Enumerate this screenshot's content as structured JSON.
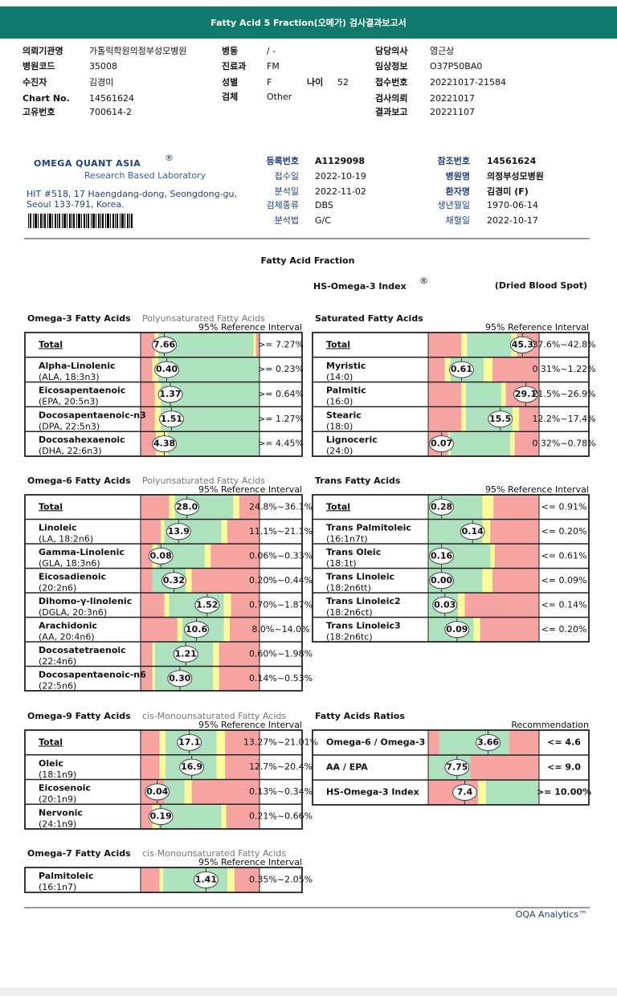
{
  "header": {
    "title": "Fatty Acid 5 Fraction(오메가) 검사결과보고서"
  },
  "info": {
    "left": [
      {
        "label": "의뢰기관명",
        "value": "가톨릭학원의정부성모병원"
      },
      {
        "label": "병원코드",
        "value": "35008"
      },
      {
        "label": "수진자",
        "value": "김경미"
      },
      {
        "label": "Chart No.",
        "value": "14561624"
      },
      {
        "label": "고유번호",
        "value": "700614-2"
      }
    ],
    "middle": [
      {
        "label": "병동",
        "value": "/ -"
      },
      {
        "label": "진료과",
        "value": "FM"
      },
      {
        "label": "성별",
        "value": "F"
      },
      {
        "label": "검체",
        "value": "Other"
      }
    ],
    "age": {
      "label": "나이",
      "value": "52"
    },
    "right": [
      {
        "label": "담당의사",
        "value": "염근상"
      },
      {
        "label": "임상정보",
        "value": "O37P50BA0"
      },
      {
        "label": "접수번호",
        "value": "20221017-21584"
      },
      {
        "label": "검사의뢰",
        "value": "20221017"
      },
      {
        "label": "결과보고",
        "value": "20221107"
      }
    ]
  },
  "lab": {
    "logo": "OMEGA QUANT ASIA",
    "logo_mark": "®",
    "tagline": "Research Based Laboratory",
    "address": [
      "HIT #518, 17 Haengdang-dong, Seongdong-gu,",
      "Seoul 133-791, Korea."
    ],
    "fields_a": [
      {
        "label": "등록번호",
        "value": "A1129098"
      },
      {
        "label": "접수일",
        "value": "2022-10-19"
      },
      {
        "label": "분석일",
        "value": "2022-11-02"
      },
      {
        "label": "검체종류",
        "value": "DBS"
      },
      {
        "label": "분석법",
        "value": "G/C"
      }
    ],
    "fields_b": [
      {
        "label": "참조번호",
        "value": "14561624"
      },
      {
        "label": "병원명",
        "value": "의정부성모병원"
      },
      {
        "label": "환자명",
        "value": "김경미 (F)"
      },
      {
        "label": "생년월일",
        "value": "1970-06-14"
      },
      {
        "label": "채혈일",
        "value": "2022-10-17"
      }
    ]
  },
  "report": {
    "title": "Fatty Acid Fraction",
    "index_title": "HS-Omega-3 Index",
    "index_mark": "®",
    "specimen": "(Dried Blood Spot)"
  },
  "panels": [
    {
      "title": "Omega-3 Fatty Acids",
      "subtitle": "Polyunsaturated Fatty Acids",
      "ref_header": "95% Reference Interval",
      "rows": [
        {
          "name": "Total",
          "value": "7.66",
          "reference": ">= 7.27%"
        },
        {
          "name": "Alpha-Linolenic",
          "abbrev": "(ALA, 18:3n3)",
          "value": "0.40",
          "reference": ">= 0.23%"
        },
        {
          "name": "Eicosapentaenoic",
          "abbrev": "(EPA, 20:5n3)",
          "value": "1.37",
          "reference": ">= 0.64%"
        },
        {
          "name": "Docosapentaenoic-n3",
          "abbrev": "(DPA, 22:5n3)",
          "value": "1.51",
          "reference": ">= 1.27%"
        },
        {
          "name": "Docosahexaenoic",
          "abbrev": "(DHA, 22:6n3)",
          "value": "4.38",
          "reference": ">= 4.45%"
        }
      ]
    },
    {
      "title": "Saturated Fatty Acids",
      "ref_header": "95% Reference Interval",
      "rows": [
        {
          "name": "Total",
          "value": "45.3",
          "reference": "37.6%~42.8%"
        },
        {
          "name": "Myristic",
          "abbrev": "(14:0)",
          "value": "0.61",
          "reference": "0.31%~1.22%"
        },
        {
          "name": "Palmitic",
          "abbrev": "(16:0)",
          "value": "29.1",
          "reference": "21.5%~26.9%"
        },
        {
          "name": "Stearic",
          "abbrev": "(18:0)",
          "value": "15.5",
          "reference": "12.2%~17.4%"
        },
        {
          "name": "Lignoceric",
          "abbrev": "(24:0)",
          "value": "0.07",
          "reference": "0.32%~0.78%"
        }
      ]
    },
    {
      "title": "Omega-6 Fatty Acids",
      "subtitle": "Polyunsaturated Fatty Acids",
      "ref_header": "95% Reference Interval",
      "rows": [
        {
          "name": "Total",
          "value": "28.0",
          "reference": "24.8%~36.1%"
        },
        {
          "name": "Linoleic",
          "abbrev": "(LA, 18:2n6)",
          "value": "13.9",
          "reference": "11.1%~21.1%"
        },
        {
          "name": "Gamma-Linolenic",
          "abbrev": "(GLA, 18:3n6)",
          "value": "0.08",
          "reference": "0.06%~0.33%"
        },
        {
          "name": "Eicosadienoic",
          "abbrev": "(20:2n6)",
          "value": "0.32",
          "reference": "0.20%~0.44%"
        },
        {
          "name": "Dihomo-γ-linolenic",
          "abbrev": "(DGLA, 20:3n6)",
          "value": "1.52",
          "reference": "0.70%~1.87%"
        },
        {
          "name": "Arachidonic",
          "abbrev": "(AA, 20:4n6)",
          "value": "10.6",
          "reference": "8.0%~14.0%"
        },
        {
          "name": "Docosatetraenoic",
          "abbrev": "(22:4n6)",
          "value": "1.21",
          "reference": "0.60%~1.98%"
        },
        {
          "name": "Docosapentaenoic-n6",
          "abbrev": "(22:5n6)",
          "value": "0.30",
          "reference": "0.14%~0.53%"
        }
      ]
    },
    {
      "title": "Trans Fatty Acids",
      "ref_header": "95% Reference Interval",
      "rows": [
        {
          "name": "Total",
          "value": "0.28",
          "reference": "<= 0.91%"
        },
        {
          "name": "Trans Palmitoleic",
          "abbrev": "(16:1n7t)",
          "value": "0.14",
          "reference": "<= 0.20%"
        },
        {
          "name": "Trans Oleic",
          "abbrev": "(18:1t)",
          "value": "0.16",
          "reference": "<= 0.61%"
        },
        {
          "name": "Trans Linoleic",
          "abbrev": "(18:2n6tt)",
          "value": "0.00",
          "reference": "<= 0.09%"
        },
        {
          "name": "Trans Linoleic2",
          "abbrev": "(18:2n6ct)",
          "value": "0.03",
          "reference": "<= 0.14%"
        },
        {
          "name": "Trans Linoleic3",
          "abbrev": "(18:2n6tc)",
          "value": "0.09",
          "reference": "<= 0.20%"
        }
      ]
    },
    {
      "title": "Omega-9 Fatty Acids",
      "subtitle": "cis-Monounsaturated Fatty Acids",
      "ref_header": "95% Reference Interval",
      "rows": [
        {
          "name": "Total",
          "value": "17.1",
          "reference": "13.27%~21.01%"
        },
        {
          "name": "Oleic",
          "abbrev": "(18:1n9)",
          "value": "16.9",
          "reference": "12.7%~20.4%"
        },
        {
          "name": "Eicosenoic",
          "abbrev": "(20:1n9)",
          "value": "0.04",
          "reference": "0.13%~0.34%"
        },
        {
          "name": "Nervonic",
          "abbrev": "(24:1n9)",
          "value": "0.19",
          "reference": "0.21%~0.66%"
        }
      ]
    },
    {
      "title": "Fatty Acids Ratios",
      "ref_header": "Recommendation",
      "rows": [
        {
          "name": "Omega-6 / Omega-3",
          "value": "3.66",
          "reference": "<= 4.6"
        },
        {
          "name": "AA / EPA",
          "value": "7.75",
          "reference": "<= 9.0"
        },
        {
          "name": "HS-Omega-3 Index",
          "value": "7.4",
          "reference": ">= 10.00%"
        }
      ]
    },
    {
      "title": "Omega-7 Fatty Acids",
      "subtitle": "cis-Monounsaturated Fatty Acids",
      "ref_header": "95% Reference Interval",
      "rows": [
        {
          "name": "Palmitoleic",
          "abbrev": "(16:1n7)",
          "value": "1.41",
          "reference": "0.35%~2.05%"
        }
      ]
    }
  ],
  "footer": {
    "brand": "OQA Analytics™"
  }
}
